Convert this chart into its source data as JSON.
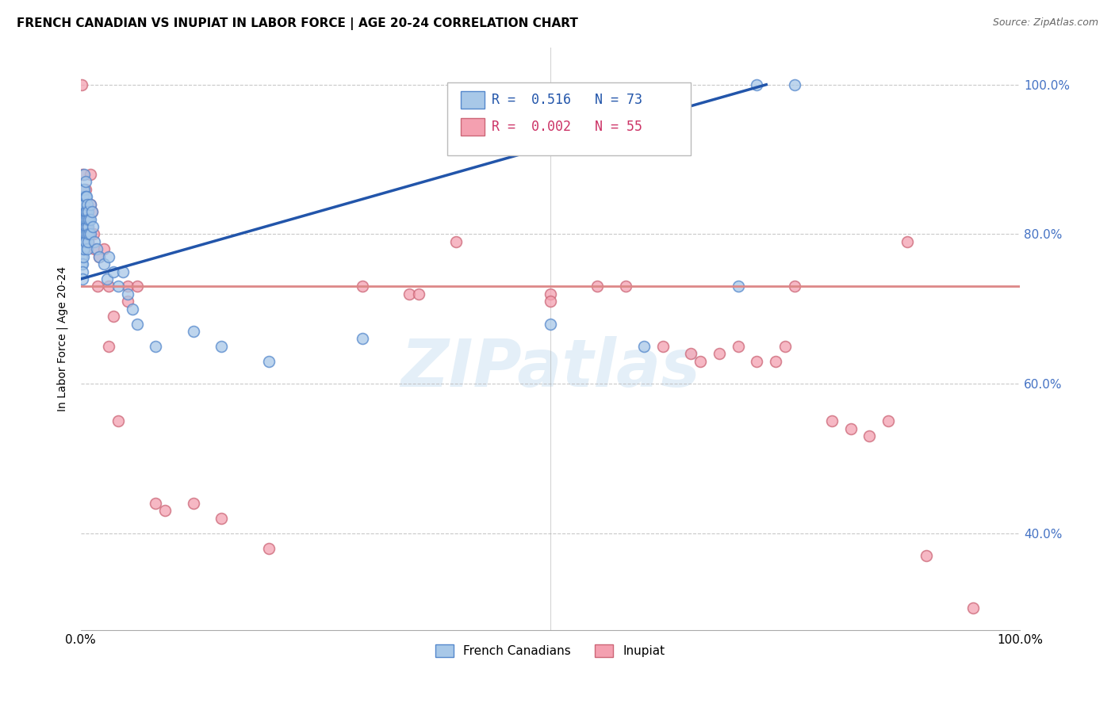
{
  "title": "FRENCH CANADIAN VS INUPIAT IN LABOR FORCE | AGE 20-24 CORRELATION CHART",
  "source": "Source: ZipAtlas.com",
  "ylabel": "In Labor Force | Age 20-24",
  "background_color": "#ffffff",
  "blue_color": "#a8c8e8",
  "pink_color": "#f4a0b0",
  "blue_edge_color": "#5588cc",
  "pink_edge_color": "#cc6677",
  "blue_line_color": "#2255aa",
  "pink_line_color": "#dd8888",
  "blue_scatter": [
    [
      0.001,
      0.83
    ],
    [
      0.001,
      0.8
    ],
    [
      0.001,
      0.79
    ],
    [
      0.001,
      0.77
    ],
    [
      0.001,
      0.76
    ],
    [
      0.002,
      0.84
    ],
    [
      0.002,
      0.82
    ],
    [
      0.002,
      0.81
    ],
    [
      0.002,
      0.79
    ],
    [
      0.002,
      0.78
    ],
    [
      0.002,
      0.76
    ],
    [
      0.002,
      0.75
    ],
    [
      0.002,
      0.74
    ],
    [
      0.003,
      0.86
    ],
    [
      0.003,
      0.85
    ],
    [
      0.003,
      0.84
    ],
    [
      0.003,
      0.83
    ],
    [
      0.003,
      0.82
    ],
    [
      0.003,
      0.81
    ],
    [
      0.003,
      0.8
    ],
    [
      0.003,
      0.79
    ],
    [
      0.003,
      0.78
    ],
    [
      0.003,
      0.77
    ],
    [
      0.004,
      0.88
    ],
    [
      0.004,
      0.86
    ],
    [
      0.004,
      0.84
    ],
    [
      0.004,
      0.82
    ],
    [
      0.004,
      0.8
    ],
    [
      0.004,
      0.79
    ],
    [
      0.004,
      0.78
    ],
    [
      0.005,
      0.87
    ],
    [
      0.005,
      0.85
    ],
    [
      0.005,
      0.83
    ],
    [
      0.005,
      0.82
    ],
    [
      0.005,
      0.8
    ],
    [
      0.005,
      0.79
    ],
    [
      0.006,
      0.85
    ],
    [
      0.006,
      0.83
    ],
    [
      0.006,
      0.81
    ],
    [
      0.007,
      0.84
    ],
    [
      0.007,
      0.82
    ],
    [
      0.007,
      0.8
    ],
    [
      0.007,
      0.78
    ],
    [
      0.008,
      0.83
    ],
    [
      0.008,
      0.81
    ],
    [
      0.008,
      0.79
    ],
    [
      0.009,
      0.82
    ],
    [
      0.009,
      0.8
    ],
    [
      0.01,
      0.84
    ],
    [
      0.01,
      0.82
    ],
    [
      0.01,
      0.8
    ],
    [
      0.012,
      0.83
    ],
    [
      0.013,
      0.81
    ],
    [
      0.015,
      0.79
    ],
    [
      0.017,
      0.78
    ],
    [
      0.02,
      0.77
    ],
    [
      0.025,
      0.76
    ],
    [
      0.028,
      0.74
    ],
    [
      0.03,
      0.77
    ],
    [
      0.035,
      0.75
    ],
    [
      0.04,
      0.73
    ],
    [
      0.045,
      0.75
    ],
    [
      0.05,
      0.72
    ],
    [
      0.055,
      0.7
    ],
    [
      0.06,
      0.68
    ],
    [
      0.08,
      0.65
    ],
    [
      0.12,
      0.67
    ],
    [
      0.15,
      0.65
    ],
    [
      0.2,
      0.63
    ],
    [
      0.3,
      0.66
    ],
    [
      0.5,
      0.68
    ],
    [
      0.6,
      0.65
    ],
    [
      0.7,
      0.73
    ],
    [
      0.72,
      1.0
    ],
    [
      0.76,
      1.0
    ]
  ],
  "pink_scatter": [
    [
      0.001,
      1.0
    ],
    [
      0.002,
      0.88
    ],
    [
      0.002,
      0.84
    ],
    [
      0.003,
      0.82
    ],
    [
      0.003,
      0.79
    ],
    [
      0.004,
      0.84
    ],
    [
      0.004,
      0.82
    ],
    [
      0.005,
      0.86
    ],
    [
      0.006,
      0.83
    ],
    [
      0.007,
      0.81
    ],
    [
      0.008,
      0.79
    ],
    [
      0.01,
      0.88
    ],
    [
      0.01,
      0.84
    ],
    [
      0.012,
      0.83
    ],
    [
      0.014,
      0.8
    ],
    [
      0.015,
      0.78
    ],
    [
      0.018,
      0.73
    ],
    [
      0.02,
      0.77
    ],
    [
      0.025,
      0.78
    ],
    [
      0.03,
      0.73
    ],
    [
      0.03,
      0.65
    ],
    [
      0.035,
      0.69
    ],
    [
      0.04,
      0.55
    ],
    [
      0.05,
      0.73
    ],
    [
      0.05,
      0.71
    ],
    [
      0.06,
      0.73
    ],
    [
      0.08,
      0.44
    ],
    [
      0.09,
      0.43
    ],
    [
      0.12,
      0.44
    ],
    [
      0.15,
      0.42
    ],
    [
      0.2,
      0.38
    ],
    [
      0.3,
      0.73
    ],
    [
      0.35,
      0.72
    ],
    [
      0.36,
      0.72
    ],
    [
      0.4,
      0.79
    ],
    [
      0.5,
      0.72
    ],
    [
      0.5,
      0.71
    ],
    [
      0.55,
      0.73
    ],
    [
      0.58,
      0.73
    ],
    [
      0.62,
      0.65
    ],
    [
      0.65,
      0.64
    ],
    [
      0.66,
      0.63
    ],
    [
      0.68,
      0.64
    ],
    [
      0.7,
      0.65
    ],
    [
      0.72,
      0.63
    ],
    [
      0.74,
      0.63
    ],
    [
      0.75,
      0.65
    ],
    [
      0.76,
      0.73
    ],
    [
      0.8,
      0.55
    ],
    [
      0.82,
      0.54
    ],
    [
      0.84,
      0.53
    ],
    [
      0.86,
      0.55
    ],
    [
      0.88,
      0.79
    ],
    [
      0.9,
      0.37
    ],
    [
      0.95,
      0.3
    ]
  ],
  "blue_trend_x": [
    0.0,
    0.73
  ],
  "blue_trend_y": [
    0.74,
    1.0
  ],
  "pink_trend_y": 0.73,
  "xlim": [
    0.0,
    1.0
  ],
  "ylim": [
    0.27,
    1.05
  ],
  "yticks": [
    0.4,
    0.6,
    0.8,
    1.0
  ],
  "ytick_labels": [
    "40.0%",
    "60.0%",
    "80.0%",
    "100.0%"
  ],
  "title_fontsize": 11,
  "source_fontsize": 9,
  "axis_label_fontsize": 10,
  "legend_fontsize": 12,
  "marker_size": 100
}
